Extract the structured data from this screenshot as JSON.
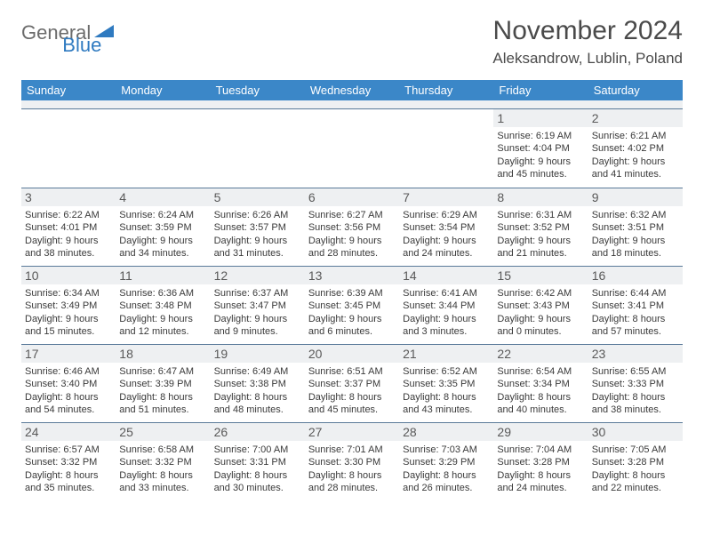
{
  "logo": {
    "part1": "General",
    "part2": "Blue"
  },
  "title": "November 2024",
  "location": "Aleksandrow, Lublin, Poland",
  "colors": {
    "header_bg": "#3b87c8",
    "header_text": "#ffffff",
    "daynum_bg": "#eef0f2",
    "border": "#5a7a99",
    "text": "#3a3a3a",
    "title_text": "#4a4a4a"
  },
  "dayNames": [
    "Sunday",
    "Monday",
    "Tuesday",
    "Wednesday",
    "Thursday",
    "Friday",
    "Saturday"
  ],
  "leadingBlanks": 5,
  "days": [
    {
      "n": 1,
      "sr": "6:19 AM",
      "ss": "4:04 PM",
      "dl": "9 hours and 45 minutes."
    },
    {
      "n": 2,
      "sr": "6:21 AM",
      "ss": "4:02 PM",
      "dl": "9 hours and 41 minutes."
    },
    {
      "n": 3,
      "sr": "6:22 AM",
      "ss": "4:01 PM",
      "dl": "9 hours and 38 minutes."
    },
    {
      "n": 4,
      "sr": "6:24 AM",
      "ss": "3:59 PM",
      "dl": "9 hours and 34 minutes."
    },
    {
      "n": 5,
      "sr": "6:26 AM",
      "ss": "3:57 PM",
      "dl": "9 hours and 31 minutes."
    },
    {
      "n": 6,
      "sr": "6:27 AM",
      "ss": "3:56 PM",
      "dl": "9 hours and 28 minutes."
    },
    {
      "n": 7,
      "sr": "6:29 AM",
      "ss": "3:54 PM",
      "dl": "9 hours and 24 minutes."
    },
    {
      "n": 8,
      "sr": "6:31 AM",
      "ss": "3:52 PM",
      "dl": "9 hours and 21 minutes."
    },
    {
      "n": 9,
      "sr": "6:32 AM",
      "ss": "3:51 PM",
      "dl": "9 hours and 18 minutes."
    },
    {
      "n": 10,
      "sr": "6:34 AM",
      "ss": "3:49 PM",
      "dl": "9 hours and 15 minutes."
    },
    {
      "n": 11,
      "sr": "6:36 AM",
      "ss": "3:48 PM",
      "dl": "9 hours and 12 minutes."
    },
    {
      "n": 12,
      "sr": "6:37 AM",
      "ss": "3:47 PM",
      "dl": "9 hours and 9 minutes."
    },
    {
      "n": 13,
      "sr": "6:39 AM",
      "ss": "3:45 PM",
      "dl": "9 hours and 6 minutes."
    },
    {
      "n": 14,
      "sr": "6:41 AM",
      "ss": "3:44 PM",
      "dl": "9 hours and 3 minutes."
    },
    {
      "n": 15,
      "sr": "6:42 AM",
      "ss": "3:43 PM",
      "dl": "9 hours and 0 minutes."
    },
    {
      "n": 16,
      "sr": "6:44 AM",
      "ss": "3:41 PM",
      "dl": "8 hours and 57 minutes."
    },
    {
      "n": 17,
      "sr": "6:46 AM",
      "ss": "3:40 PM",
      "dl": "8 hours and 54 minutes."
    },
    {
      "n": 18,
      "sr": "6:47 AM",
      "ss": "3:39 PM",
      "dl": "8 hours and 51 minutes."
    },
    {
      "n": 19,
      "sr": "6:49 AM",
      "ss": "3:38 PM",
      "dl": "8 hours and 48 minutes."
    },
    {
      "n": 20,
      "sr": "6:51 AM",
      "ss": "3:37 PM",
      "dl": "8 hours and 45 minutes."
    },
    {
      "n": 21,
      "sr": "6:52 AM",
      "ss": "3:35 PM",
      "dl": "8 hours and 43 minutes."
    },
    {
      "n": 22,
      "sr": "6:54 AM",
      "ss": "3:34 PM",
      "dl": "8 hours and 40 minutes."
    },
    {
      "n": 23,
      "sr": "6:55 AM",
      "ss": "3:33 PM",
      "dl": "8 hours and 38 minutes."
    },
    {
      "n": 24,
      "sr": "6:57 AM",
      "ss": "3:32 PM",
      "dl": "8 hours and 35 minutes."
    },
    {
      "n": 25,
      "sr": "6:58 AM",
      "ss": "3:32 PM",
      "dl": "8 hours and 33 minutes."
    },
    {
      "n": 26,
      "sr": "7:00 AM",
      "ss": "3:31 PM",
      "dl": "8 hours and 30 minutes."
    },
    {
      "n": 27,
      "sr": "7:01 AM",
      "ss": "3:30 PM",
      "dl": "8 hours and 28 minutes."
    },
    {
      "n": 28,
      "sr": "7:03 AM",
      "ss": "3:29 PM",
      "dl": "8 hours and 26 minutes."
    },
    {
      "n": 29,
      "sr": "7:04 AM",
      "ss": "3:28 PM",
      "dl": "8 hours and 24 minutes."
    },
    {
      "n": 30,
      "sr": "7:05 AM",
      "ss": "3:28 PM",
      "dl": "8 hours and 22 minutes."
    }
  ],
  "labels": {
    "sunrise": "Sunrise:",
    "sunset": "Sunset:",
    "daylight": "Daylight:"
  }
}
